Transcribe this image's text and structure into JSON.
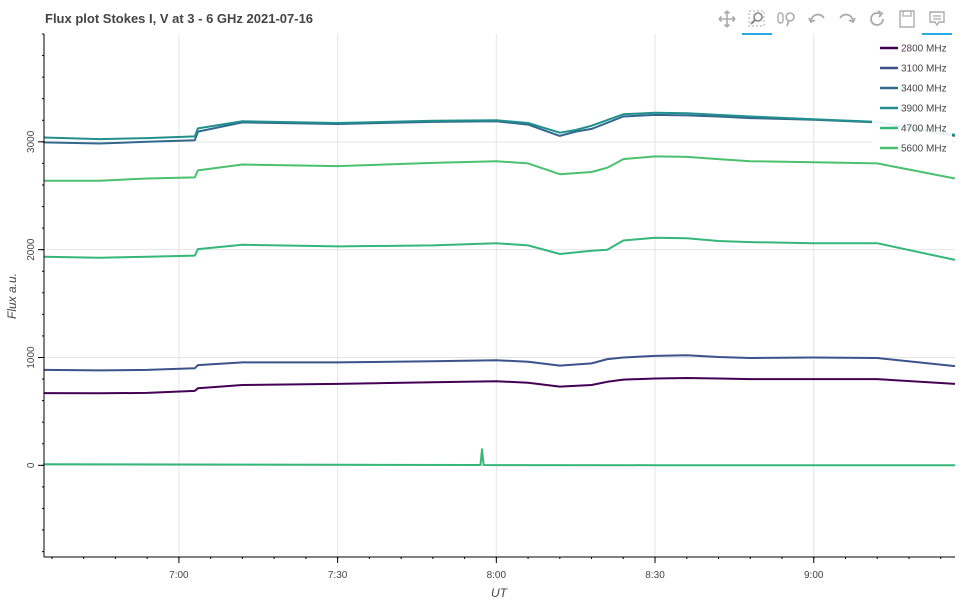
{
  "title": "Flux plot Stokes I, V at 3 - 6 GHz 2021-07-16",
  "toolbar": [
    {
      "name": "pan-icon",
      "active": false
    },
    {
      "name": "box-zoom-icon",
      "active": true
    },
    {
      "name": "wheel-zoom-icon",
      "active": false
    },
    {
      "name": "undo-icon",
      "active": false
    },
    {
      "name": "redo-icon",
      "active": false
    },
    {
      "name": "reset-icon",
      "active": false
    },
    {
      "name": "save-icon",
      "active": false
    },
    {
      "name": "hover-icon",
      "active": true
    }
  ],
  "chart_data": {
    "type": "line",
    "title": "Flux plot Stokes I, V at 3 - 6 GHz 2021-07-16",
    "xlabel": "UT",
    "ylabel": "Flux a.u.",
    "x_unit": "hours UT",
    "xlim": [
      6.575,
      9.445
    ],
    "ylim": [
      -850,
      4000
    ],
    "x_ticks": [
      {
        "value": 7.0,
        "label": "7:00"
      },
      {
        "value": 7.5,
        "label": "7:30"
      },
      {
        "value": 8.0,
        "label": "8:00"
      },
      {
        "value": 8.5,
        "label": "8:30"
      },
      {
        "value": 9.0,
        "label": "9:00"
      }
    ],
    "y_ticks": [
      {
        "value": 0,
        "label": "0"
      },
      {
        "value": 1000,
        "label": "1000"
      },
      {
        "value": 2000,
        "label": "2000"
      },
      {
        "value": 3000,
        "label": "3000"
      }
    ],
    "grid": true,
    "legend_position": "top-right",
    "series": [
      {
        "name": "2800 MHz",
        "color": "#440154",
        "x": [
          6.575,
          6.75,
          6.9,
          7.05,
          7.06,
          7.2,
          7.5,
          7.8,
          8.0,
          8.1,
          8.2,
          8.3,
          8.35,
          8.4,
          8.5,
          8.6,
          8.7,
          8.8,
          9.0,
          9.2,
          9.445
        ],
        "y": [
          670,
          668,
          672,
          690,
          715,
          745,
          755,
          770,
          780,
          765,
          730,
          745,
          775,
          795,
          805,
          810,
          805,
          800,
          800,
          800,
          755
        ]
      },
      {
        "name": "3100 MHz",
        "color": "#3b528b",
        "x": [
          6.575,
          6.75,
          6.9,
          7.05,
          7.06,
          7.2,
          7.5,
          7.8,
          8.0,
          8.1,
          8.2,
          8.3,
          8.35,
          8.4,
          8.5,
          8.6,
          8.7,
          8.8,
          9.0,
          9.2,
          9.445
        ],
        "y": [
          885,
          880,
          885,
          900,
          930,
          955,
          955,
          965,
          975,
          960,
          925,
          945,
          985,
          1000,
          1015,
          1020,
          1005,
          995,
          1000,
          995,
          920
        ]
      },
      {
        "name": "3400 MHz",
        "color": "#31688e",
        "x": [
          6.575,
          6.75,
          6.9,
          7.05,
          7.06,
          7.2,
          7.5,
          7.8,
          8.0,
          8.1,
          8.2,
          8.25,
          8.3,
          8.4,
          8.5,
          8.6,
          8.7,
          8.8,
          9.0,
          9.2,
          9.445
        ],
        "y": [
          2995,
          2985,
          3000,
          3015,
          3095,
          3180,
          3165,
          3185,
          3190,
          3160,
          3055,
          3095,
          3120,
          3235,
          3250,
          3245,
          3235,
          3220,
          3205,
          3180,
          3055
        ]
      },
      {
        "name": "3900 MHz",
        "color": "#21908d",
        "x": [
          6.575,
          6.75,
          6.9,
          7.05,
          7.06,
          7.2,
          7.5,
          7.8,
          8.0,
          8.1,
          8.2,
          8.25,
          8.3,
          8.4,
          8.5,
          8.6,
          8.7,
          8.8,
          9.0,
          9.2,
          9.445
        ],
        "y": [
          3040,
          3025,
          3035,
          3050,
          3125,
          3190,
          3175,
          3195,
          3200,
          3175,
          3085,
          3110,
          3150,
          3255,
          3270,
          3265,
          3250,
          3235,
          3210,
          3185,
          3065
        ]
      },
      {
        "name": "4700 MHz",
        "color": "#35b779",
        "x": [
          6.575,
          6.75,
          6.9,
          7.05,
          7.06,
          7.2,
          7.5,
          7.8,
          8.0,
          8.1,
          8.2,
          8.3,
          8.35,
          8.4,
          8.5,
          8.6,
          8.7,
          8.8,
          9.0,
          9.2,
          9.445
        ],
        "y": [
          1935,
          1925,
          1935,
          1945,
          2005,
          2045,
          2030,
          2040,
          2060,
          2040,
          1960,
          1990,
          2000,
          2085,
          2110,
          2105,
          2080,
          2070,
          2060,
          2060,
          1905
        ]
      },
      {
        "name": "5600 MHz",
        "color": "#4ac16d",
        "x": [
          6.575,
          6.75,
          6.9,
          7.05,
          7.06,
          7.2,
          7.5,
          7.8,
          8.0,
          8.1,
          8.2,
          8.3,
          8.35,
          8.4,
          8.5,
          8.6,
          8.7,
          8.8,
          9.0,
          9.2,
          9.445
        ],
        "y": [
          2640,
          2640,
          2660,
          2670,
          2735,
          2790,
          2775,
          2805,
          2820,
          2800,
          2700,
          2720,
          2760,
          2840,
          2865,
          2860,
          2840,
          2820,
          2810,
          2800,
          2660
        ]
      },
      {
        "name": "",
        "color": "#35b779",
        "x": [
          6.575,
          7.0,
          7.5,
          7.95,
          7.955,
          7.96,
          8.0,
          8.5,
          9.0,
          9.445
        ],
        "y": [
          10,
          8,
          5,
          3,
          150,
          3,
          2,
          1,
          0,
          0
        ]
      }
    ]
  }
}
